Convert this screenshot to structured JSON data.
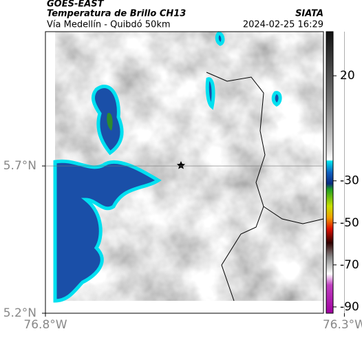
{
  "header": {
    "title": "GOES-EAST",
    "subtitle": "Temperatura de Brillo CH13",
    "source": "SIATA",
    "region": "Vía Medellín - Quibdó 50km",
    "timestamp": "2024-02-25 16:29"
  },
  "map": {
    "lon_range": [
      -76.8,
      -76.335
    ],
    "lat_range": [
      5.2,
      6.156
    ],
    "lon_ticks": [
      {
        "value": -76.8,
        "label": "76.8°W"
      },
      {
        "value": -76.3,
        "label": "76.3°W"
      }
    ],
    "lat_ticks": [
      {
        "value": 5.2,
        "label": "5.2°N"
      },
      {
        "value": 5.7,
        "label": "5.7°N"
      }
    ]
  },
  "colorbar": {
    "range": [
      -93,
      41
    ],
    "ticks": [
      20,
      -30,
      -50,
      -70,
      -90
    ]
  }
}
